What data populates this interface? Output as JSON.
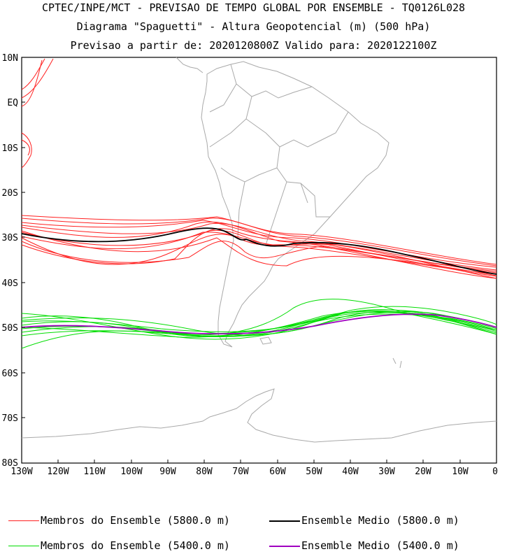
{
  "header": {
    "line1": "CPTEC/INPE/MCT - PREVISAO DE TEMPO GLOBAL POR ENSEMBLE - TQ0126L028",
    "line2": "Diagrama \"Spaguetti\" - Altura Geopotencial (m) (500 hPa)",
    "line3": "Previsao a partir de: 2020120800Z  Valido para: 2020122100Z"
  },
  "map": {
    "lat_labels": [
      "10N",
      "EQ",
      "10S",
      "20S",
      "30S",
      "40S",
      "50S",
      "60S",
      "70S",
      "80S"
    ],
    "lon_labels": [
      "130W",
      "120W",
      "110W",
      "100W",
      "90W",
      "80W",
      "70W",
      "60W",
      "50W",
      "40W",
      "30W",
      "20W",
      "10W",
      "0"
    ],
    "lat_range": [
      10,
      -80
    ],
    "lon_range": [
      -130,
      0
    ]
  },
  "colors": {
    "member_5800": "#ff2020",
    "member_5400": "#00dd00",
    "mean_5800": "#000000",
    "mean_5400": "#a000c0",
    "coast": "#a9a9a9"
  },
  "legend": {
    "item1": "Membros do Ensemble (5800.0 m)",
    "item2": "Ensemble Medio (5800.0 m)",
    "item3": "Membros do Ensemble (5400.0 m)",
    "item4": "Ensemble Medio (5400.0 m)"
  }
}
